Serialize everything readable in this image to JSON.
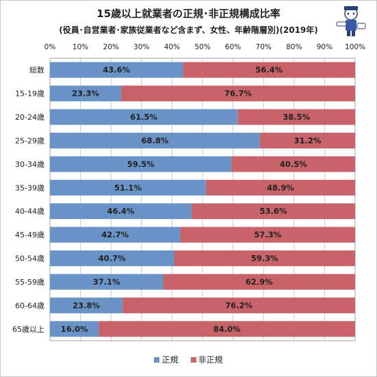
{
  "title": "15歳以上就業者の正規･非正規構成比率",
  "subtitle": "(役員･自営業者･家族従業者など含まず、女性、年齢階層別)(2019年)",
  "legend": {
    "regular": "正規",
    "non_regular": "非正規"
  },
  "colors": {
    "regular": "#6a93c8",
    "non_regular": "#c9636a",
    "grid": "#c8c8c8",
    "text": "#222222"
  },
  "chart_data": {
    "type": "bar",
    "orientation": "horizontal",
    "stacked": true,
    "x_ticks": [
      "0%",
      "10%",
      "20%",
      "30%",
      "40%",
      "50%",
      "60%",
      "70%",
      "80%",
      "90%",
      "100%"
    ],
    "xlim": [
      0,
      100
    ],
    "grid": true,
    "legend_position": "bottom",
    "categories": [
      "総数",
      "15-19歳",
      "20-24歳",
      "25-29歳",
      "30-34歳",
      "35-39歳",
      "40-44歳",
      "45-49歳",
      "50-54歳",
      "55-59歳",
      "60-64歳",
      "65歳以上"
    ],
    "series": [
      {
        "name": "正規",
        "values": [
          43.6,
          23.3,
          61.5,
          68.8,
          59.5,
          51.1,
          46.4,
          42.7,
          40.7,
          37.1,
          23.8,
          16.0
        ]
      },
      {
        "name": "非正規",
        "values": [
          56.4,
          76.7,
          38.5,
          31.2,
          40.5,
          48.9,
          53.6,
          57.3,
          59.3,
          62.9,
          76.2,
          84.0
        ]
      }
    ]
  }
}
